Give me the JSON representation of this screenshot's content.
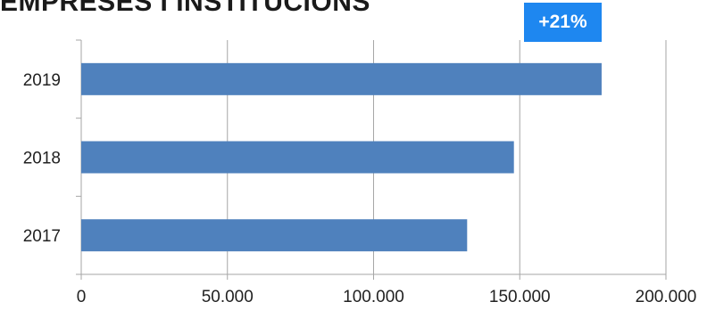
{
  "title": "EMPRESES I INSTITUCIONS",
  "badge": "+21%",
  "colors": {
    "bar": "#4f81bd",
    "badge": "#1e87f0",
    "grid": "#a6a6a6"
  },
  "chart_data": {
    "type": "bar",
    "orientation": "horizontal",
    "categories": [
      "2017",
      "2018",
      "2019"
    ],
    "values": [
      132000,
      148000,
      178000
    ],
    "x_tick_labels": [
      "0",
      "50.000",
      "100.000",
      "150.000",
      "200.000"
    ],
    "x_ticks": [
      0,
      50000,
      100000,
      150000,
      200000
    ],
    "xlim": [
      0,
      200000
    ],
    "grid": true
  }
}
